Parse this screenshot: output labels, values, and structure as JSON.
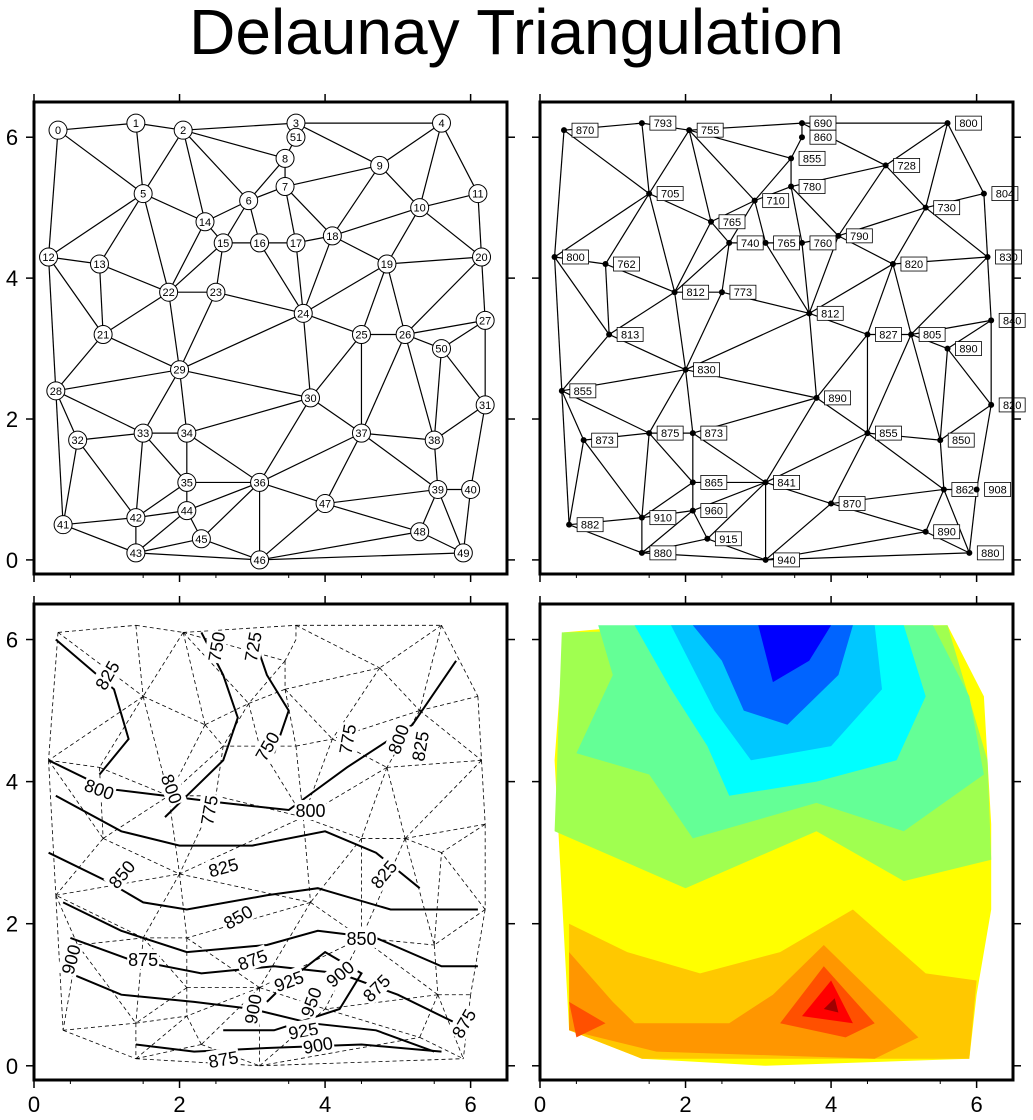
{
  "title": "Delaunay Triangulation",
  "axes": {
    "x_ticks": [
      0,
      2,
      4,
      6
    ],
    "y_ticks": [
      0,
      2,
      4,
      6
    ],
    "xlim": [
      0,
      6.5
    ],
    "ylim": [
      -0.2,
      6.5
    ]
  },
  "chart_data": [
    {
      "type": "scatter",
      "panel": "top-left",
      "description_visible": "numbered node triangulation",
      "points": [
        {
          "id": "0",
          "x": 0.33,
          "y": 6.1
        },
        {
          "id": "1",
          "x": 1.4,
          "y": 6.2
        },
        {
          "id": "2",
          "x": 2.05,
          "y": 6.1
        },
        {
          "id": "3",
          "x": 3.6,
          "y": 6.2
        },
        {
          "id": "4",
          "x": 5.6,
          "y": 6.2
        },
        {
          "id": "5",
          "x": 1.5,
          "y": 5.2
        },
        {
          "id": "6",
          "x": 2.95,
          "y": 5.1
        },
        {
          "id": "7",
          "x": 3.45,
          "y": 5.3
        },
        {
          "id": "8",
          "x": 3.45,
          "y": 5.7
        },
        {
          "id": "9",
          "x": 4.75,
          "y": 5.6
        },
        {
          "id": "10",
          "x": 5.3,
          "y": 5.0
        },
        {
          "id": "11",
          "x": 6.1,
          "y": 5.2
        },
        {
          "id": "12",
          "x": 0.2,
          "y": 4.3
        },
        {
          "id": "13",
          "x": 0.9,
          "y": 4.2
        },
        {
          "id": "14",
          "x": 2.35,
          "y": 4.8
        },
        {
          "id": "15",
          "x": 2.6,
          "y": 4.5
        },
        {
          "id": "16",
          "x": 3.1,
          "y": 4.5
        },
        {
          "id": "17",
          "x": 3.6,
          "y": 4.5
        },
        {
          "id": "18",
          "x": 4.1,
          "y": 4.6
        },
        {
          "id": "19",
          "x": 4.85,
          "y": 4.2
        },
        {
          "id": "20",
          "x": 6.15,
          "y": 4.3
        },
        {
          "id": "21",
          "x": 0.95,
          "y": 3.2
        },
        {
          "id": "22",
          "x": 1.85,
          "y": 3.8
        },
        {
          "id": "23",
          "x": 2.5,
          "y": 3.8
        },
        {
          "id": "24",
          "x": 3.7,
          "y": 3.5
        },
        {
          "id": "25",
          "x": 4.5,
          "y": 3.2
        },
        {
          "id": "26",
          "x": 5.1,
          "y": 3.2
        },
        {
          "id": "27",
          "x": 6.2,
          "y": 3.4
        },
        {
          "id": "28",
          "x": 0.3,
          "y": 2.4
        },
        {
          "id": "29",
          "x": 2.0,
          "y": 2.7
        },
        {
          "id": "30",
          "x": 3.8,
          "y": 2.3
        },
        {
          "id": "31",
          "x": 6.2,
          "y": 2.2
        },
        {
          "id": "32",
          "x": 0.6,
          "y": 1.7
        },
        {
          "id": "33",
          "x": 1.5,
          "y": 1.8
        },
        {
          "id": "34",
          "x": 2.1,
          "y": 1.8
        },
        {
          "id": "35",
          "x": 2.1,
          "y": 1.1
        },
        {
          "id": "36",
          "x": 3.1,
          "y": 1.1
        },
        {
          "id": "37",
          "x": 4.5,
          "y": 1.8
        },
        {
          "id": "38",
          "x": 5.5,
          "y": 1.7
        },
        {
          "id": "39",
          "x": 5.55,
          "y": 1.0
        },
        {
          "id": "40",
          "x": 6.0,
          "y": 1.0
        },
        {
          "id": "41",
          "x": 0.4,
          "y": 0.5
        },
        {
          "id": "42",
          "x": 1.4,
          "y": 0.6
        },
        {
          "id": "43",
          "x": 1.4,
          "y": 0.1
        },
        {
          "id": "44",
          "x": 2.1,
          "y": 0.7
        },
        {
          "id": "45",
          "x": 2.3,
          "y": 0.3
        },
        {
          "id": "46",
          "x": 3.1,
          "y": 0.0
        },
        {
          "id": "47",
          "x": 4.0,
          "y": 0.8
        },
        {
          "id": "48",
          "x": 5.3,
          "y": 0.4
        },
        {
          "id": "49",
          "x": 5.9,
          "y": 0.1
        },
        {
          "id": "50",
          "x": 5.6,
          "y": 3.0
        },
        {
          "id": "51",
          "x": 3.6,
          "y": 6.0
        }
      ]
    },
    {
      "type": "scatter",
      "panel": "top-right",
      "values_labels": [
        "870",
        "793",
        "755",
        "690",
        "800",
        "705",
        "710",
        "780",
        "855",
        "728",
        "730",
        "804",
        "800",
        "762",
        "765",
        "740",
        "765",
        "760",
        "790",
        "820",
        "830",
        "813",
        "812",
        "773",
        "812",
        "827",
        "805",
        "840",
        "855",
        "830",
        "890",
        "820",
        "873",
        "875",
        "873",
        "865",
        "841",
        "855",
        "850",
        "862",
        "908",
        "882",
        "910",
        "880",
        "960",
        "915",
        "940",
        "870",
        "890",
        "880",
        "890",
        "860"
      ]
    },
    {
      "type": "line",
      "panel": "bottom-left",
      "contour_labels": [
        "825",
        "750",
        "725",
        "800",
        "750",
        "775",
        "800",
        "825",
        "800",
        "775",
        "800",
        "825",
        "850",
        "825",
        "850",
        "875",
        "850",
        "900",
        "875",
        "925",
        "900",
        "950",
        "925",
        "900",
        "900",
        "875",
        "875",
        "875"
      ]
    },
    {
      "type": "heatmap",
      "panel": "bottom-right",
      "colors": [
        "#0000ff",
        "#0064ff",
        "#00c8ff",
        "#00ffff",
        "#64ff96",
        "#a0ff50",
        "#ffff00",
        "#ffc800",
        "#ff9600",
        "#ff5000",
        "#ff0000",
        "#a00000"
      ]
    }
  ]
}
